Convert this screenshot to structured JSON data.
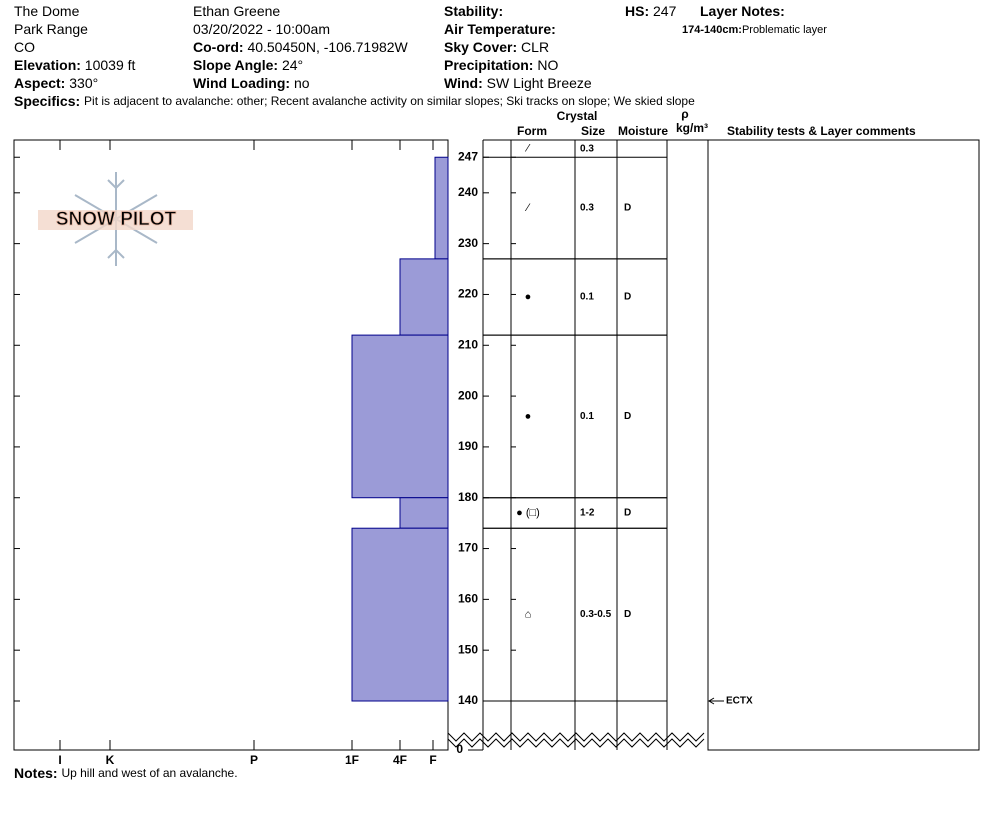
{
  "logo": "SNOW PILOT",
  "header": [
    [
      {
        "value": "The Dome"
      },
      {
        "value": "Park Range"
      },
      {
        "value": "CO"
      },
      {
        "label": "Elevation:",
        "value": "10039 ft"
      },
      {
        "label": "Aspect:",
        "value": "330°"
      }
    ],
    [
      {
        "value": "Ethan Greene"
      },
      {
        "value": "03/20/2022 - 10:00am"
      },
      {
        "label": "Co-ord:",
        "value": "40.50450N, -106.71982W"
      },
      {
        "label": "Slope Angle:",
        "value": "24°"
      },
      {
        "label": "Wind Loading:",
        "value": "no"
      }
    ],
    [
      {
        "label": "Stability:"
      },
      {
        "label": "Air Temperature:"
      },
      {
        "label": "Sky Cover:",
        "value": "CLR"
      },
      {
        "label": "Precipitation:",
        "value": "NO"
      },
      {
        "label": "Wind:",
        "value": "SW Light Breeze"
      }
    ]
  ],
  "hs": {
    "label": "HS:",
    "value": 247
  },
  "layer_notes": {
    "label": "Layer Notes:",
    "items": [
      {
        "label": "174-140cm:",
        "value": "Problematic layer"
      }
    ]
  },
  "specifics": {
    "label": "Specifics:",
    "value": "Pit is adjacent to avalanche: other;  Recent avalanche activity on similar slopes;  Ski tracks on slope;  We skied slope"
  },
  "notes": {
    "label": "Notes:",
    "value": "Up hill and west of an avalanche."
  },
  "table_headers": {
    "crystal": "Crystal",
    "form": "Form",
    "size": "Size",
    "moisture": "Moisture",
    "density": "ρ",
    "density_unit": "kg/m³",
    "comments": "Stability tests & Layer comments"
  },
  "chart_data": {
    "type": "snow-profile",
    "bar_color": "#9b9bd7",
    "xlim": [
      0,
      434
    ],
    "x_reversed": true,
    "xticks": [
      {
        "value": 15,
        "label": "F"
      },
      {
        "value": 48,
        "label": "4F"
      },
      {
        "value": 96,
        "label": "1F"
      },
      {
        "value": 194,
        "label": "P"
      },
      {
        "value": 338,
        "label": "K"
      },
      {
        "value": 388,
        "label": "I"
      }
    ],
    "ylim": [
      140,
      250
    ],
    "yticks": [
      140,
      150,
      160,
      170,
      180,
      190,
      200,
      210,
      220,
      230,
      240,
      247
    ],
    "ground_tick": 0,
    "surface": {
      "form": "⁄",
      "size": "0.3"
    },
    "layers": [
      {
        "top": 247,
        "bottom": 227,
        "hardness": 13,
        "form": "⁄",
        "size": "0.3",
        "moisture": "D"
      },
      {
        "top": 227,
        "bottom": 212,
        "hardness": 48,
        "form": "●",
        "size": "0.1",
        "moisture": "D"
      },
      {
        "top": 212,
        "bottom": 180,
        "hardness": 96,
        "form": "●",
        "size": "0.1",
        "moisture": "D"
      },
      {
        "top": 180,
        "bottom": 174,
        "hardness": 48,
        "form": "● (□)",
        "size": "1-2",
        "moisture": "D"
      },
      {
        "top": 174,
        "bottom": 140,
        "hardness": 96,
        "form": "⌂",
        "size": "0.3-0.5",
        "moisture": "D"
      }
    ],
    "tests": [
      {
        "height": 140,
        "label": "ECTX"
      }
    ]
  }
}
